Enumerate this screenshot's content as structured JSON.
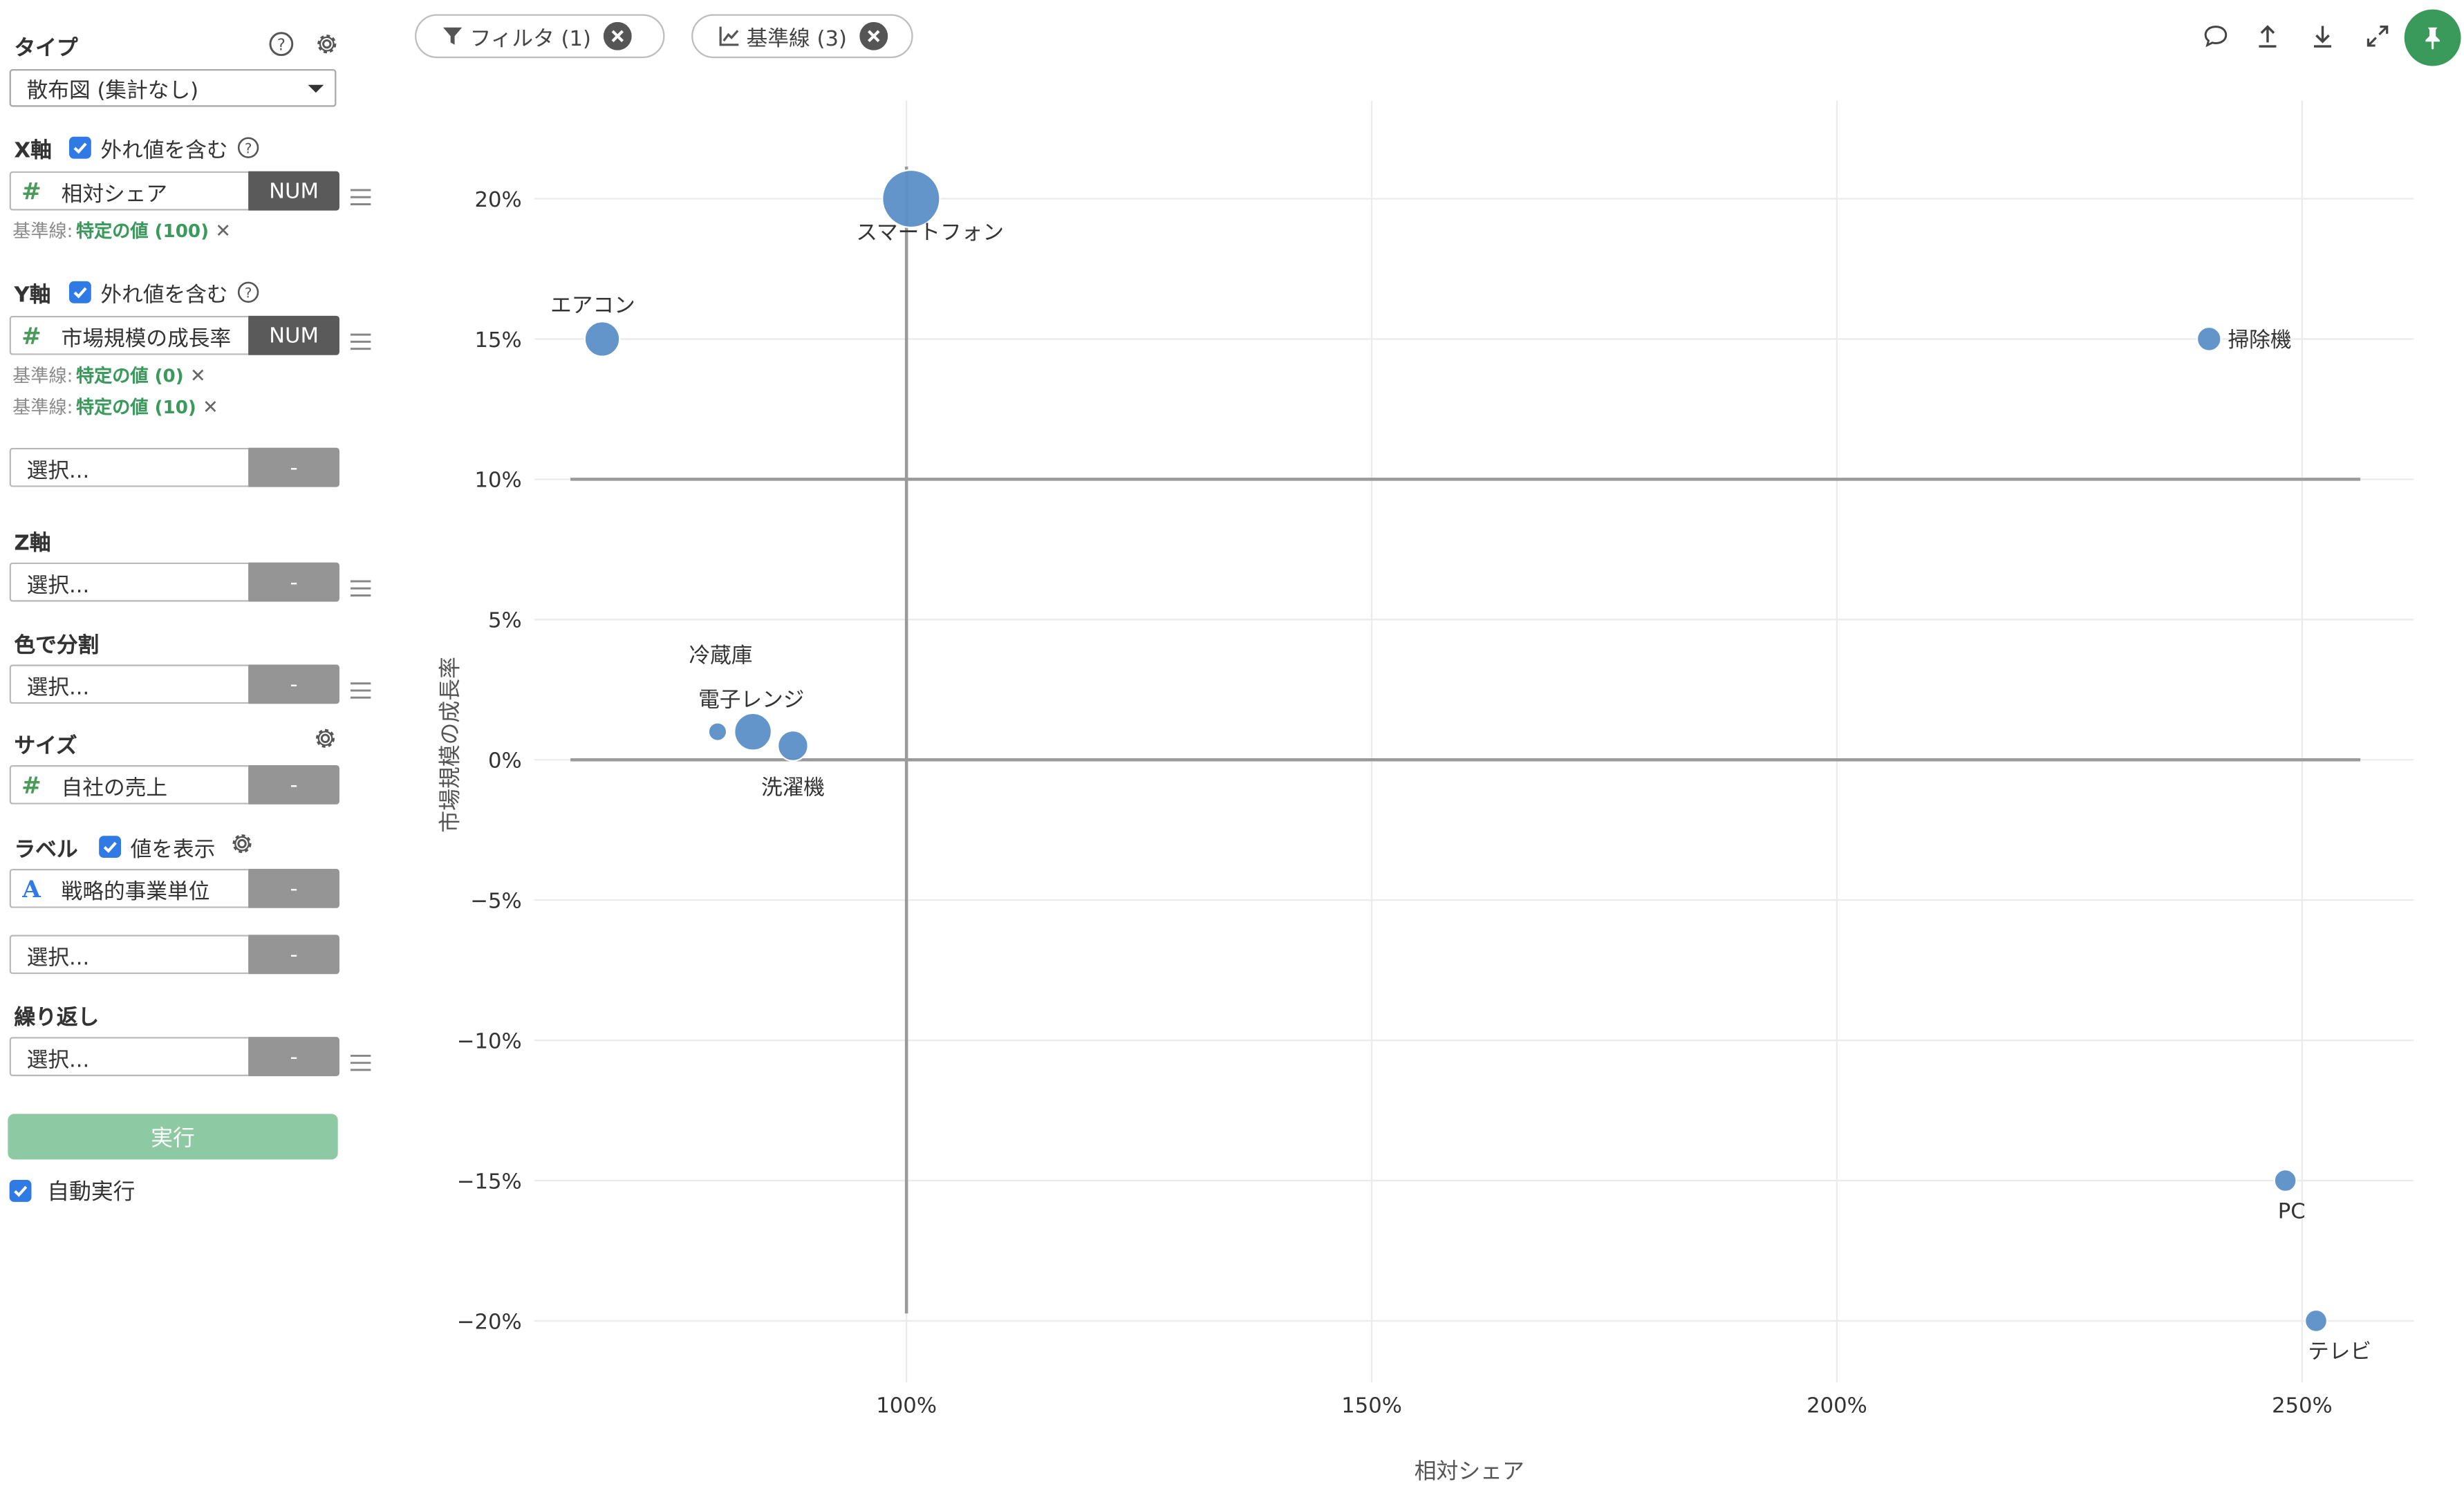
{
  "sidebar": {
    "type": {
      "title": "タイプ",
      "value": "散布図 (集計なし)"
    },
    "x_axis": {
      "title": "X軸",
      "outlier_label": "外れ値を含む",
      "field": {
        "name": "相対シェア",
        "tag": "NUM"
      },
      "baselines": [
        {
          "prefix": "基準線:",
          "value": "特定の値 (100)"
        }
      ]
    },
    "y_axis": {
      "title": "Y軸",
      "outlier_label": "外れ値を含む",
      "field": {
        "name": "市場規模の成長率",
        "tag": "NUM"
      },
      "baselines": [
        {
          "prefix": "基準線:",
          "value": "特定の値 (0)"
        },
        {
          "prefix": "基準線:",
          "value": "特定の値 (10)"
        }
      ],
      "extra_placeholder": "選択...",
      "extra_tag": "-"
    },
    "z_axis": {
      "title": "Z軸",
      "placeholder": "選択...",
      "tag": "-"
    },
    "color": {
      "title": "色で分割",
      "placeholder": "選択...",
      "tag": "-"
    },
    "size": {
      "title": "サイズ",
      "field": {
        "name": "自社の売上",
        "tag": "-"
      }
    },
    "label": {
      "title": "ラベル",
      "show_values_label": "値を表示",
      "field": {
        "name": "戦略的事業単位",
        "tag": "-"
      },
      "extra_placeholder": "選択...",
      "extra_tag": "-"
    },
    "repeat": {
      "title": "繰り返し",
      "placeholder": "選択...",
      "tag": "-"
    },
    "run_label": "実行",
    "auto_run_label": "自動実行"
  },
  "chips": [
    {
      "label": "フィルタ (1)",
      "icon": "filter-icon"
    },
    {
      "label": "基準線 (3)",
      "icon": "line-chart-icon"
    }
  ],
  "toolbar": [
    "comment-icon",
    "upload-icon",
    "download-icon",
    "expand-icon",
    "pin-icon"
  ],
  "colors": {
    "point": "#5b8fc7",
    "accent": "#3a9a5c",
    "checkbox": "#2f7ae5",
    "run_button": "#8dc9a3"
  },
  "chart_data": {
    "type": "scatter",
    "xlabel": "相対シェア",
    "ylabel": "市場規模の成長率",
    "xlim": [
      60,
      262
    ],
    "ylim": [
      -22.2,
      23.5
    ],
    "x_ticks": [
      100,
      150,
      200,
      250
    ],
    "x_tick_labels": [
      "100%",
      "150%",
      "200%",
      "250%"
    ],
    "y_ticks": [
      20,
      15,
      10,
      5,
      0,
      -5,
      -10,
      -15,
      -20
    ],
    "y_tick_labels": [
      "20%",
      "15%",
      "10%",
      "5%",
      "0%",
      "−5%",
      "−10%",
      "−15%",
      "−20%"
    ],
    "reference_lines": {
      "x": [
        100
      ],
      "y": [
        0,
        10
      ]
    },
    "grid": true,
    "points": [
      {
        "label": "スマートフォン",
        "x": 100.5,
        "y": 20,
        "size": 9
      },
      {
        "label": "エアコン",
        "x": 67.3,
        "y": 15,
        "size": 2.5
      },
      {
        "label": "掃除機",
        "x": 240,
        "y": 15,
        "size": 0.8
      },
      {
        "label": "冷蔵庫",
        "x": 79.7,
        "y": 1,
        "size": 0.3
      },
      {
        "label": "電子レンジ",
        "x": 83.5,
        "y": 1,
        "size": 3
      },
      {
        "label": "洗濯機",
        "x": 87.8,
        "y": 0.5,
        "size": 1.7
      },
      {
        "label": "PC",
        "x": 248.2,
        "y": -15,
        "size": 0.6
      },
      {
        "label": "テレビ",
        "x": 251.5,
        "y": -20,
        "size": 0.6
      }
    ]
  }
}
